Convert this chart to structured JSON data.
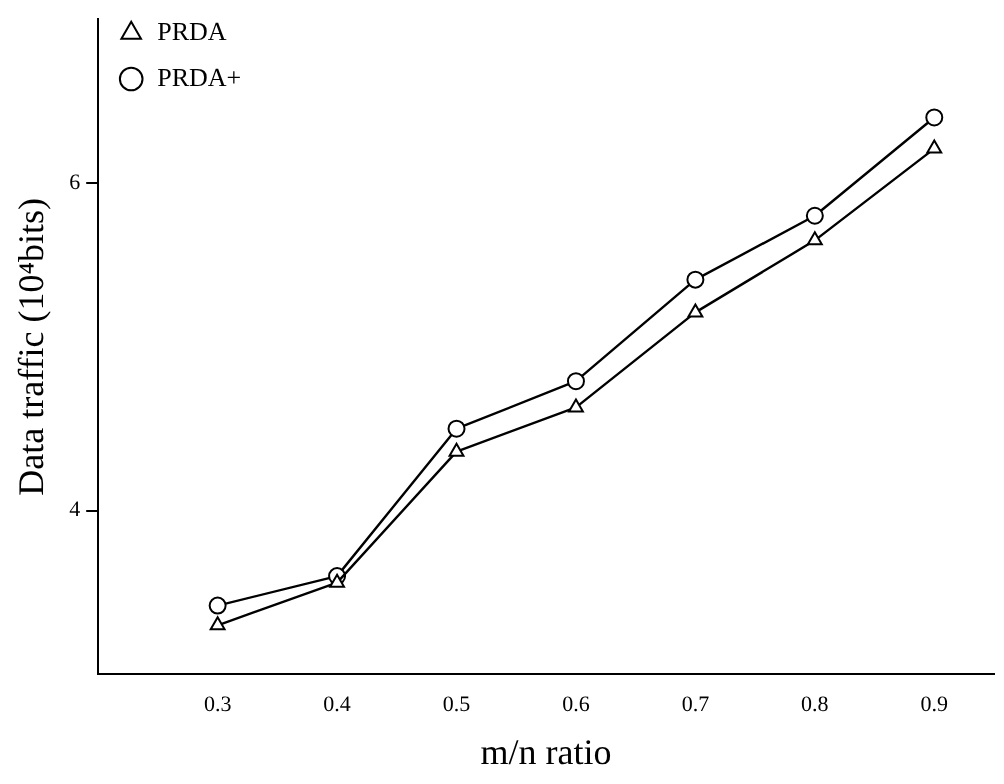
{
  "chart_data": {
    "type": "line",
    "xlabel": "m/n ratio",
    "ylabel": "Data traffic (10⁴bits)",
    "x": [
      0.3,
      0.4,
      0.5,
      0.6,
      0.7,
      0.8,
      0.9
    ],
    "series": [
      {
        "name": "PRDA+",
        "color": "#000000",
        "marker": "circle",
        "values": [
          3.42,
          3.6,
          4.5,
          4.79,
          5.41,
          5.8,
          6.4
        ]
      },
      {
        "name": "PRDA",
        "color": "#000000",
        "marker": "triangle",
        "values": [
          3.3,
          3.56,
          4.36,
          4.63,
          5.21,
          5.65,
          6.21
        ]
      }
    ],
    "xlim": [
      0.2,
      0.95
    ],
    "xticks": [
      0.3,
      0.4,
      0.5,
      0.6,
      0.7,
      0.8,
      0.9
    ],
    "ylim": [
      3,
      7
    ],
    "yticks": [
      4,
      6
    ],
    "grid": false,
    "legend": "top left",
    "line_style": "solid"
  }
}
